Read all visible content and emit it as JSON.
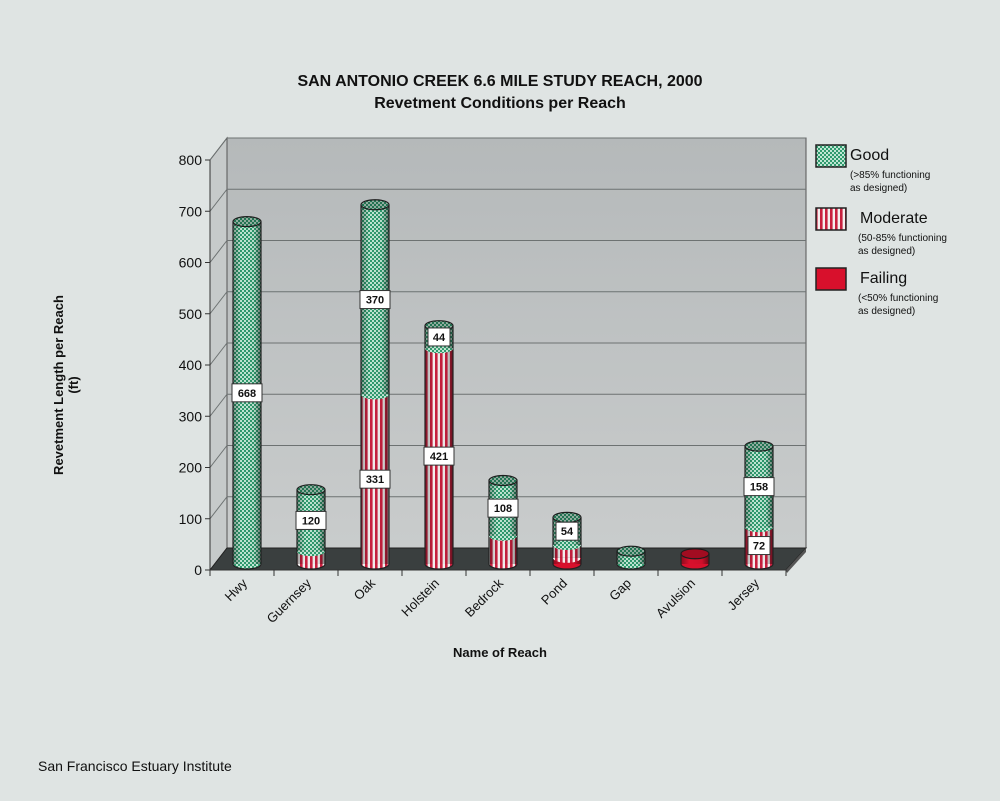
{
  "title": "SAN ANTONIO CREEK 6.6 MILE STUDY REACH, 2000",
  "subtitle": "Revetment Conditions per Reach",
  "footer": "San Francisco Estuary Institute",
  "colors": {
    "good": "#2f9a6e",
    "moderate": "#c8203e",
    "failing": "#d8102c",
    "background": "#dfe4e3",
    "wall": "#b9bdbd"
  },
  "legend": [
    {
      "name": "Good",
      "desc": "(>85% functioning\nas designed)",
      "pattern": "checker"
    },
    {
      "name": "Moderate",
      "desc": "(50-85% functioning\nas designed)",
      "pattern": "stripes"
    },
    {
      "name": "Failing",
      "desc": "(<50% functioning\nas designed)",
      "pattern": "solid"
    }
  ],
  "chart_data": {
    "type": "bar",
    "stacked": true,
    "style": "3d-cylinder",
    "title": "SAN ANTONIO CREEK 6.6 MILE STUDY REACH, 2000",
    "subtitle": "Revetment Conditions per Reach",
    "xlabel": "Name of Reach",
    "ylabel": "Revetment Length per Reach (ft)",
    "ylim": [
      0,
      800
    ],
    "yticks": [
      0,
      100,
      200,
      300,
      400,
      500,
      600,
      700,
      800
    ],
    "grid": true,
    "legend_position": "right",
    "categories": [
      "Hwy",
      "Guernsey",
      "Oak",
      "Holstein",
      "Bedrock",
      "Pond",
      "Gap",
      "Avulsion",
      "Jersey"
    ],
    "series": [
      {
        "name": "Failing",
        "values": [
          0,
          0,
          0,
          0,
          0,
          12,
          0,
          20,
          0
        ]
      },
      {
        "name": "Moderate",
        "values": [
          0,
          25,
          331,
          421,
          55,
          25,
          0,
          0,
          72
        ]
      },
      {
        "name": "Good",
        "values": [
          668,
          120,
          370,
          44,
          108,
          54,
          25,
          0,
          158
        ]
      }
    ],
    "data_labels": [
      {
        "category": "Hwy",
        "series": "Good",
        "text": "668"
      },
      {
        "category": "Guernsey",
        "series": "Good",
        "text": "120"
      },
      {
        "category": "Oak",
        "series": "Moderate",
        "text": "331"
      },
      {
        "category": "Oak",
        "series": "Good",
        "text": "370"
      },
      {
        "category": "Holstein",
        "series": "Moderate",
        "text": "421"
      },
      {
        "category": "Holstein",
        "series": "Good",
        "text": "44"
      },
      {
        "category": "Bedrock",
        "series": "Good",
        "text": "108"
      },
      {
        "category": "Pond",
        "series": "Good",
        "text": "54"
      },
      {
        "category": "Jersey",
        "series": "Moderate",
        "text": "72"
      },
      {
        "category": "Jersey",
        "series": "Good",
        "text": "158"
      }
    ]
  }
}
